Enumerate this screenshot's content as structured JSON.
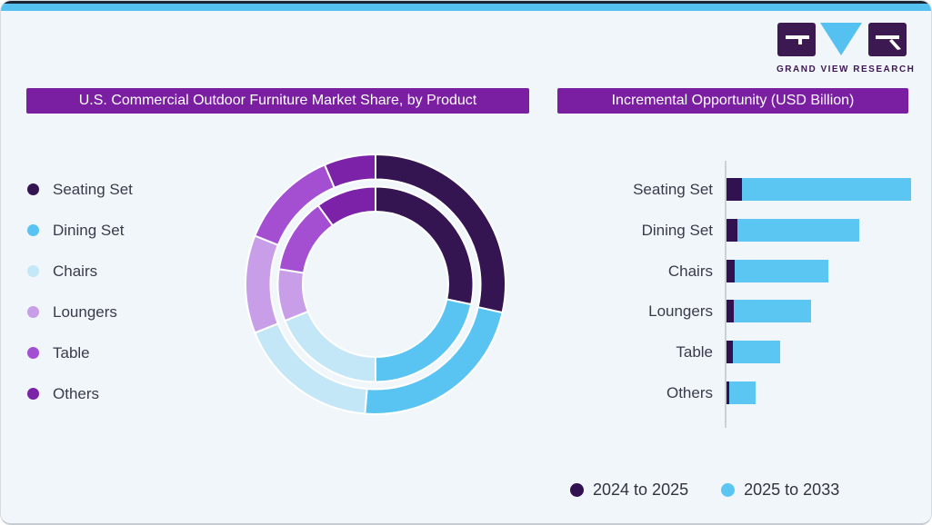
{
  "logo": {
    "text": "GRAND VIEW RESEARCH"
  },
  "panels": {
    "left_title": "U.S. Commercial Outdoor Furniture Market Share, by Product",
    "right_title": "Incremental Opportunity (USD Billion)"
  },
  "donut_legend": {
    "items": [
      {
        "label": "Seating Set"
      },
      {
        "label": "Dining Set"
      },
      {
        "label": "Chairs"
      },
      {
        "label": "Loungers"
      },
      {
        "label": "Table"
      },
      {
        "label": "Others"
      }
    ]
  },
  "bar_legend": {
    "items": [
      {
        "label": "2024 to 2025",
        "color": "#321150"
      },
      {
        "label": "2025 to 2033",
        "color": "#5BC6F2"
      }
    ]
  },
  "colors": {
    "accent_blue": "#55C1F0",
    "banner_purple": "#7B1FA2",
    "background": "#F1F6FA",
    "text_dark": "#3A3A4C",
    "logo_purple": "#3D1952",
    "donut_palette": [
      "#341551",
      "#59C3F2",
      "#C4E7F8",
      "#C89EE8",
      "#A44FD2",
      "#7B22A8"
    ],
    "bar_dark": "#321150",
    "bar_blue": "#5BC6F2",
    "axis_line": "#C9D1D7",
    "segment_gap_stroke": "#FFFFFF"
  },
  "chart_data": [
    {
      "type": "pie",
      "subtype": "double-ring-donut",
      "title": "U.S. Commercial Outdoor Furniture Market Share, by Product",
      "categories": [
        "Seating Set",
        "Dining Set",
        "Chairs",
        "Loungers",
        "Table",
        "Others"
      ],
      "series": [
        {
          "name": "outer ring",
          "values": [
            28.5,
            22.8,
            17.6,
            12.2,
            12.5,
            6.4
          ]
        },
        {
          "name": "inner ring",
          "values": [
            28.3,
            21.7,
            18.9,
            8.6,
            12.5,
            10.0
          ]
        }
      ],
      "unit": "percent share (estimated from arc angles)",
      "start_angle_deg": 0,
      "legend_position": "left"
    },
    {
      "type": "bar",
      "orientation": "horizontal",
      "stacked": true,
      "title": "Incremental Opportunity (USD Billion)",
      "categories": [
        "Seating Set",
        "Dining Set",
        "Chairs",
        "Loungers",
        "Table",
        "Others"
      ],
      "series": [
        {
          "name": "2024 to 2025",
          "values": [
            8.2,
            5.9,
            4.4,
            4.1,
            3.6,
            1.6
          ]
        },
        {
          "name": "2025 to 2033",
          "values": [
            91.8,
            66.2,
            50.7,
            41.8,
            25.6,
            14.1
          ]
        }
      ],
      "value_scale": "relative units, longest stacked bar = 100 (no numeric axis shown)",
      "axis_labels_shown": false,
      "legend_position": "bottom"
    }
  ]
}
